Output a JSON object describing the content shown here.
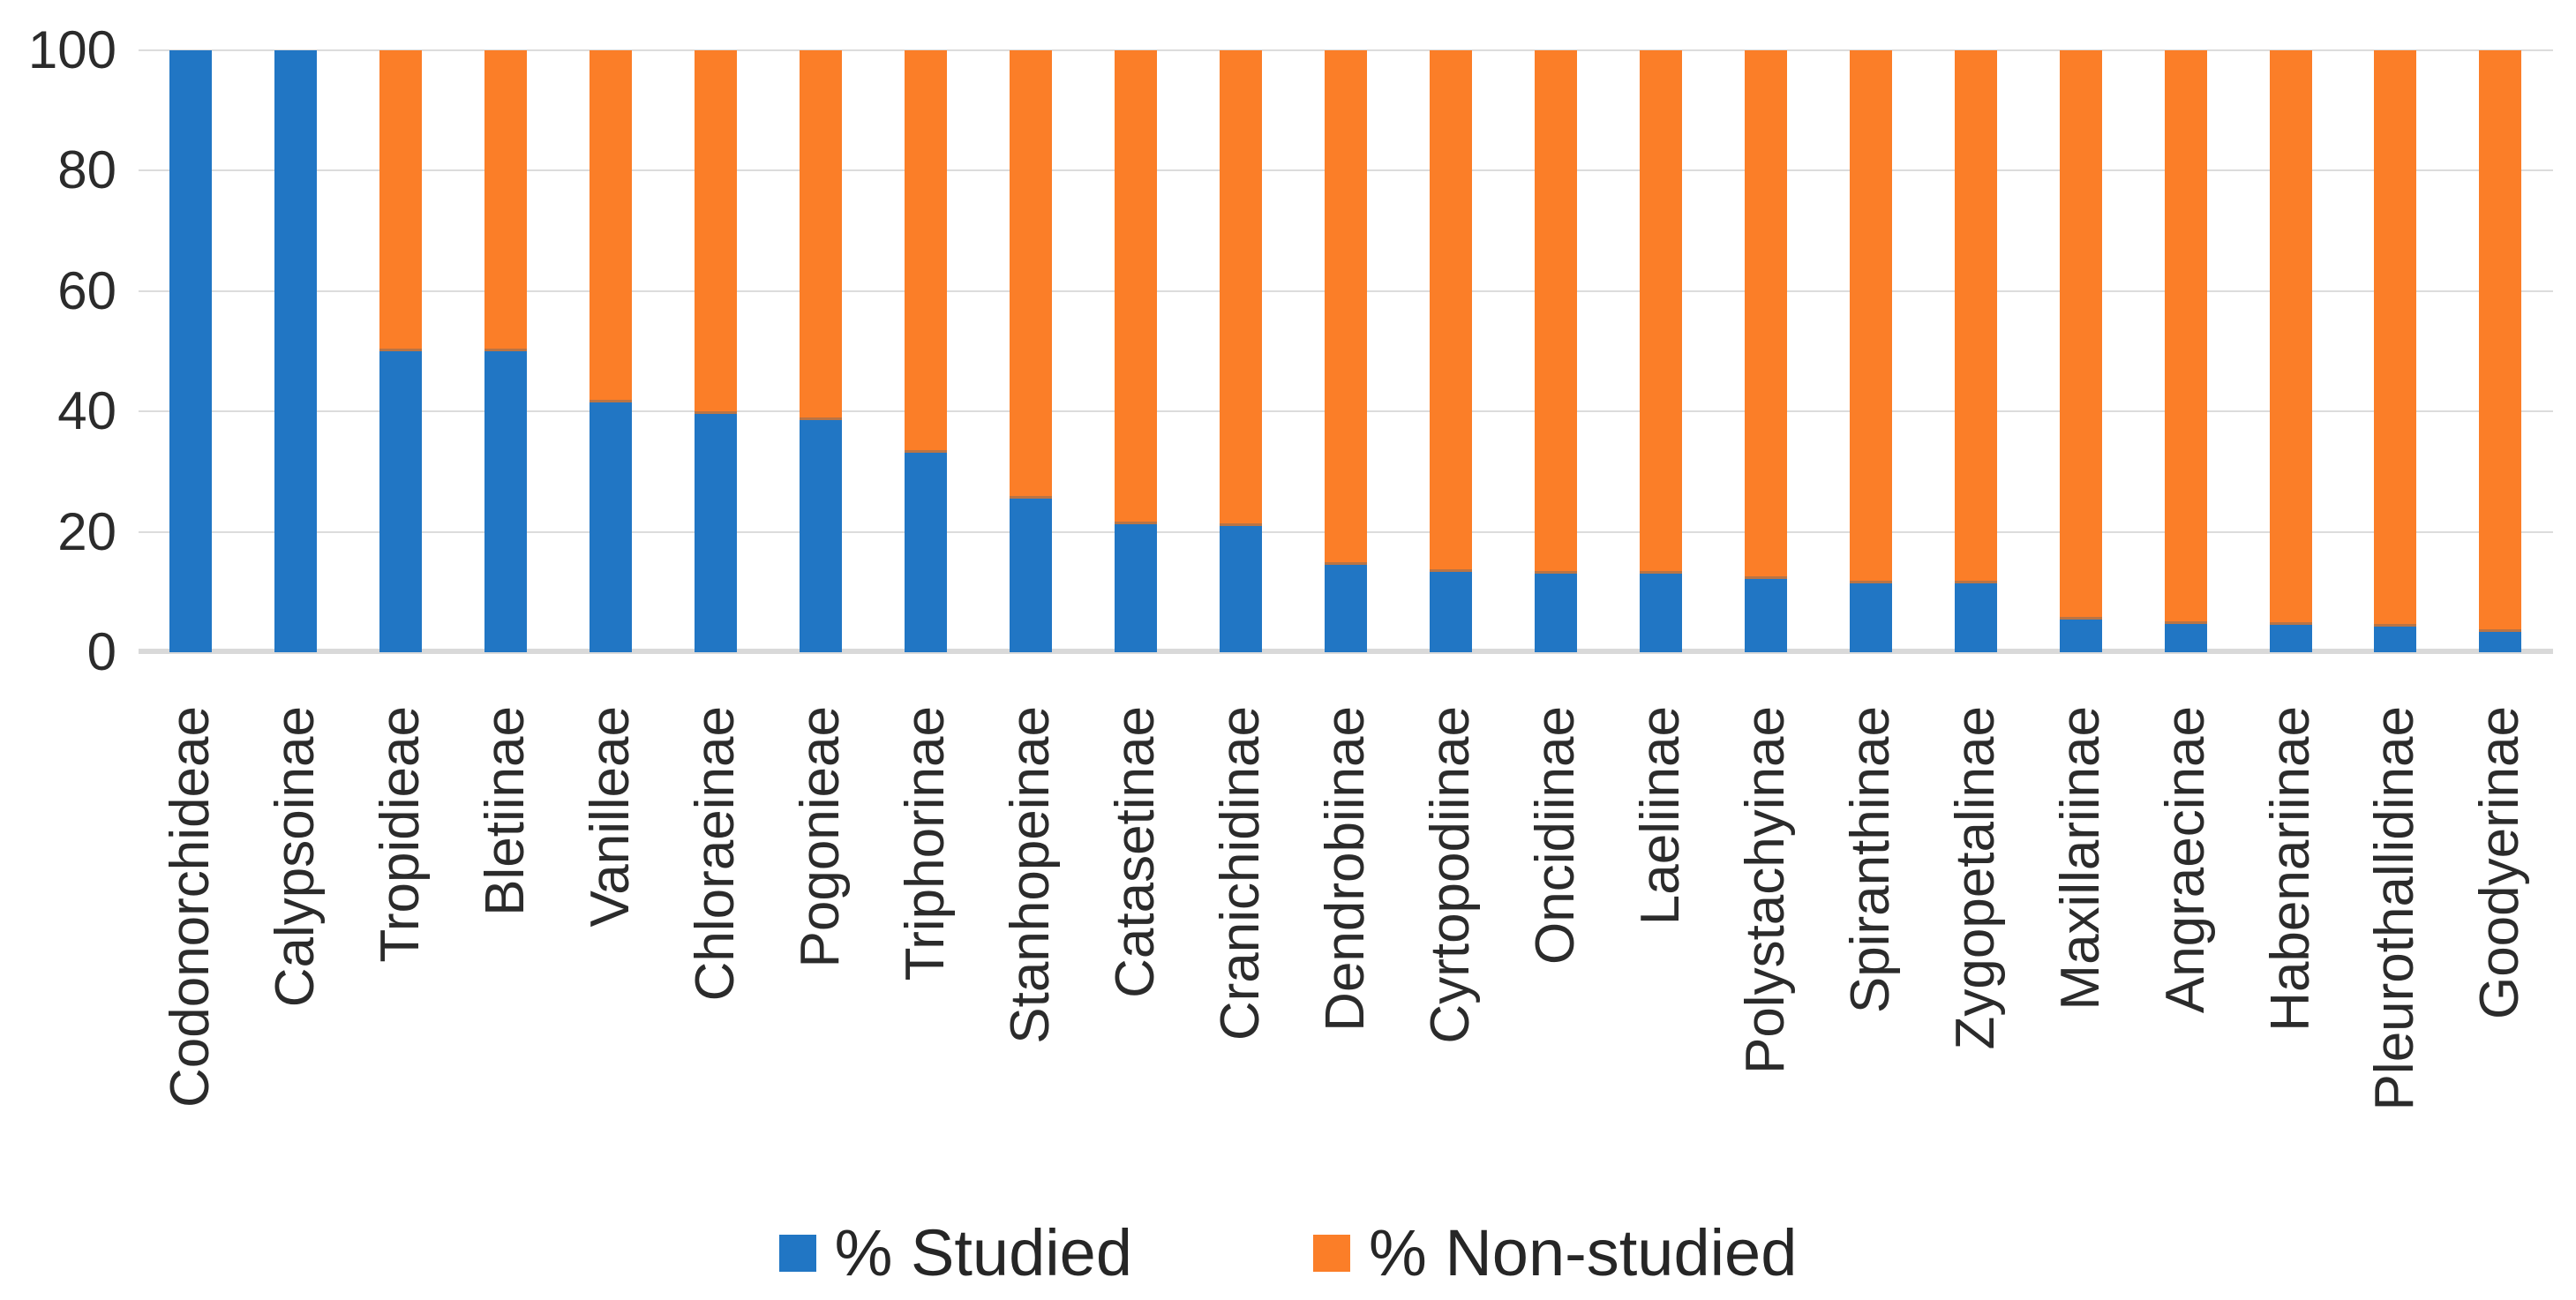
{
  "chart_data": {
    "type": "bar",
    "stacked": true,
    "percent_stacked": true,
    "title": "",
    "xlabel": "",
    "ylabel": "",
    "ylim": [
      0,
      100
    ],
    "yticks": [
      0,
      20,
      40,
      60,
      80,
      100
    ],
    "grid": "horizontal",
    "legend_position": "bottom",
    "categories": [
      "Codonorchideae",
      "Calypsoinae",
      "Tropidieae",
      "Bletiinae",
      "Vanilleae",
      "Chloraeinae",
      "Pogonieae",
      "Triphorinae",
      "Stanhopeinae",
      "Catasetinae",
      "Cranichidinae",
      "Dendrobiinae",
      "Cyrtopodiinae",
      "Oncidiinae",
      "Laeliinae",
      "Polystachyinae",
      "Spiranthinae",
      "Zygopetalinae",
      "Maxillariinae",
      "Angraecinae",
      "Habenariinae",
      "Pleurothallidinae",
      "Goodyerinae"
    ],
    "series": [
      {
        "name": "% Studied",
        "color": "#2176C4",
        "values": [
          100,
          100,
          50,
          50,
          41.5,
          39.6,
          38.6,
          33.1,
          25.5,
          21.2,
          20.9,
          14.5,
          13.3,
          13.1,
          13.0,
          12.2,
          11.5,
          11.4,
          5.4,
          4.7,
          4.6,
          4.3,
          3.4
        ]
      },
      {
        "name": "% Non-studied",
        "color": "#FB7E28",
        "values": [
          0,
          0,
          50,
          50,
          58.5,
          60.4,
          61.4,
          66.9,
          74.5,
          78.8,
          79.1,
          85.5,
          86.7,
          86.9,
          87.0,
          87.8,
          88.5,
          88.6,
          94.6,
          95.3,
          95.4,
          95.7,
          96.6
        ]
      }
    ]
  },
  "colors": {
    "studied_blue": "#2176C4",
    "non_studied_orange": "#FB7E28",
    "gridline": "#DCDCDC",
    "axis_line": "#D9D9D9",
    "tick_text": "#2B2B2B",
    "legend_text": "#262626",
    "background": "#FFFFFF"
  }
}
